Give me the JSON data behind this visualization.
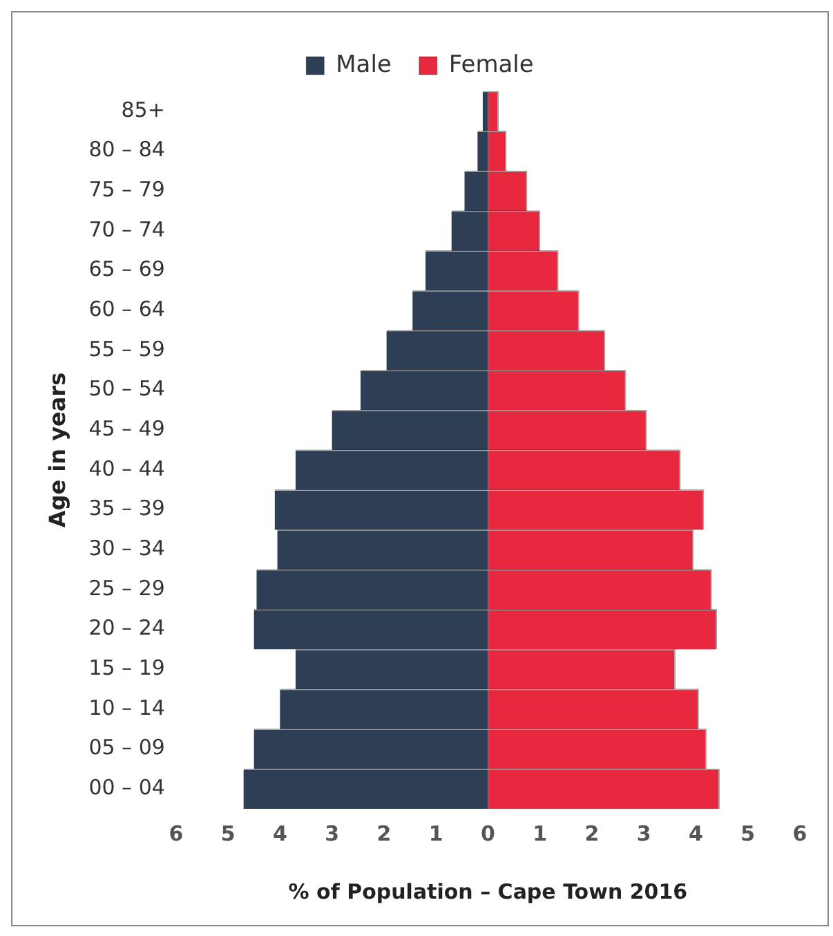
{
  "chart_data": {
    "type": "bar",
    "orientation": "horizontal",
    "stacked": true,
    "xlabel": "% of Population – Cape Town 2016",
    "ylabel": "Age in years",
    "categories": [
      "85+",
      "80 – 84",
      "75 – 79",
      "70 – 74",
      "65 – 69",
      "60 – 64",
      "55 – 59",
      "50 – 54",
      "45 – 49",
      "40 – 44",
      "35 – 39",
      "30 – 34",
      "25 – 29",
      "20 – 24",
      "15 – 19",
      "10 – 14",
      "05 – 09",
      "00 – 04"
    ],
    "series": [
      {
        "name": "Male",
        "color": "#2e3f55",
        "values": [
          -0.1,
          -0.2,
          -0.45,
          -0.7,
          -1.2,
          -1.45,
          -1.95,
          -2.45,
          -3.0,
          -3.7,
          -4.1,
          -4.05,
          -4.45,
          -4.5,
          -3.7,
          -4.0,
          -4.5,
          -4.7
        ]
      },
      {
        "name": "Female",
        "color": "#e8283f",
        "values": [
          0.2,
          0.35,
          0.75,
          1.0,
          1.35,
          1.75,
          2.25,
          2.65,
          3.05,
          3.7,
          4.15,
          3.95,
          4.3,
          4.4,
          3.6,
          4.05,
          4.2,
          4.45
        ]
      }
    ],
    "xlim": [
      -6,
      6
    ],
    "xticks": [
      {
        "value": -6,
        "label": "6"
      },
      {
        "value": -5,
        "label": "5"
      },
      {
        "value": -4,
        "label": "4"
      },
      {
        "value": -3,
        "label": "3"
      },
      {
        "value": -2,
        "label": "2"
      },
      {
        "value": -1,
        "label": "1"
      },
      0,
      1,
      2,
      3,
      4,
      5,
      6
    ],
    "grid": false,
    "legend": "top"
  }
}
